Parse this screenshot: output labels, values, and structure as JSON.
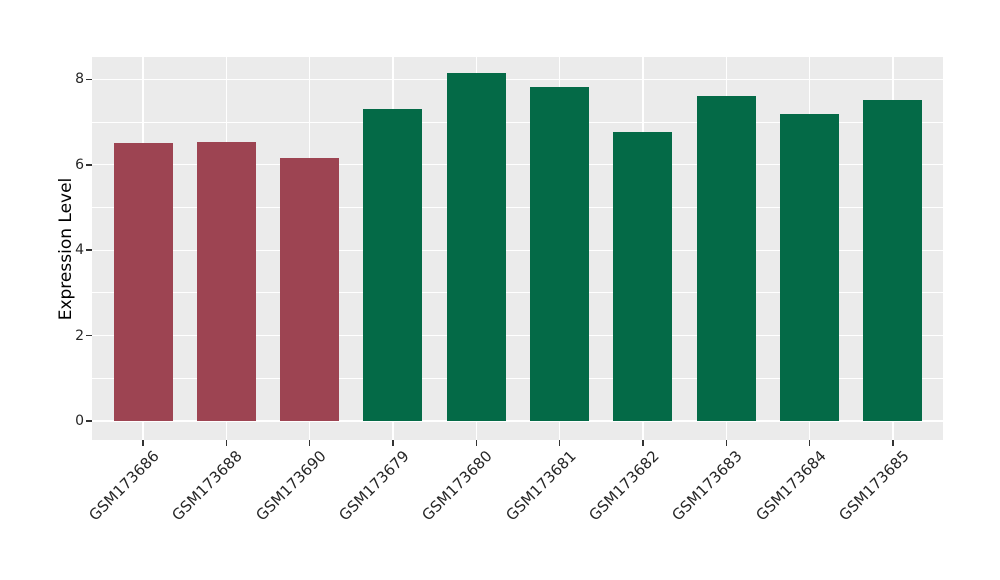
{
  "chart_data": {
    "type": "bar",
    "title": "",
    "xlabel": "",
    "ylabel": "Expression Level",
    "categories": [
      "GSM173686",
      "GSM173688",
      "GSM173690",
      "GSM173679",
      "GSM173680",
      "GSM173681",
      "GSM173682",
      "GSM173683",
      "GSM173684",
      "GSM173685"
    ],
    "values": [
      6.5,
      6.54,
      6.15,
      7.3,
      8.14,
      7.83,
      6.77,
      7.61,
      7.19,
      7.51
    ],
    "bar_colors": [
      "#9D4452",
      "#9D4452",
      "#9D4452",
      "#046A47",
      "#046A47",
      "#046A47",
      "#046A47",
      "#046A47",
      "#046A47",
      "#046A47"
    ],
    "group_color_legend": {
      "maroon_group": "#9D4452",
      "green_group": "#046A47"
    },
    "yticks": [
      0,
      2,
      4,
      6,
      8
    ],
    "yticks_minor": [
      1,
      3,
      5,
      7
    ],
    "ylim": [
      -0.45,
      8.55
    ],
    "grid": true,
    "legend_position": "none",
    "panel_background": "#EBEBEB",
    "grid_color": "#FFFFFF",
    "tick_mark_color": "#333333",
    "text_color": "#262626",
    "x_label_rotation_deg": 45
  }
}
